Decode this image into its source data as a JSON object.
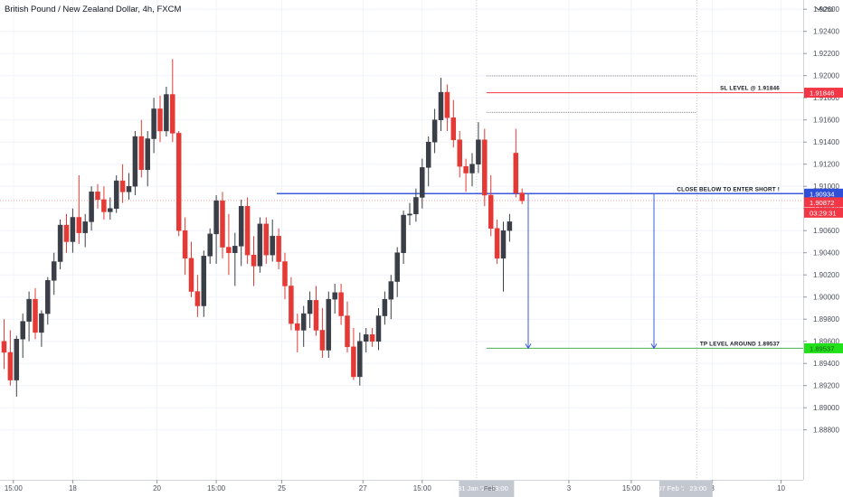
{
  "header": {
    "symbol_title": "British Pound / New Zealand Dollar, 4h, FXCM"
  },
  "colors": {
    "up": "#3a3e46",
    "down": "#e53935",
    "wick_up": "#3a3e46",
    "wick_down": "#e53935",
    "grid": "#f0f3fa",
    "axis_text": "#4a4f5a",
    "sl_line": "#f23645",
    "tp_line": "#4caf50",
    "entry_line": "#3b5bdb",
    "current_line": "#f7a29c",
    "badge_current": "#f23645",
    "badge_countdown": "#f23645",
    "badge_sl": "#f23645",
    "badge_tp": "#22e01a",
    "badge_entry": "#2f4fd9",
    "dotted": "#888888"
  },
  "chart_data": {
    "type": "candlestick",
    "title": "British Pound / New Zealand Dollar, 4h, FXCM",
    "currency_label": "NZD",
    "ylim": [
      1.8865,
      1.9285
    ],
    "y_ticks": [
      "1.92600",
      "1.92400",
      "1.92200",
      "1.92000",
      "1.91800",
      "1.91600",
      "1.91400",
      "1.91200",
      "1.91000",
      "1.90800",
      "1.90600",
      "1.90400",
      "1.90200",
      "1.90000",
      "1.89800",
      "1.89600",
      "1.89400",
      "1.89200",
      "1.89000",
      "1.88800"
    ],
    "y_tick_values": [
      1.926,
      1.924,
      1.922,
      1.92,
      1.918,
      1.916,
      1.914,
      1.912,
      1.91,
      1.908,
      1.906,
      1.904,
      1.902,
      1.9,
      1.898,
      1.896,
      1.894,
      1.892,
      1.89,
      1.888
    ],
    "x_ticks": [
      {
        "label": "15:00",
        "bar": 1.5
      },
      {
        "label": "18",
        "bar": 11
      },
      {
        "label": "20",
        "bar": 24.5
      },
      {
        "label": "15:00",
        "bar": 34
      },
      {
        "label": "25",
        "bar": 44.5
      },
      {
        "label": "27",
        "bar": 57.5
      },
      {
        "label": "15:00",
        "bar": 67
      },
      {
        "label": "3",
        "bar": 90.5
      },
      {
        "label": "15:00",
        "bar": 100.5
      },
      {
        "label": "8",
        "bar": 113.5
      },
      {
        "label": "10",
        "bar": 124.5
      }
    ],
    "x_badges": [
      {
        "label": "31 Jan '21",
        "bar": 75.2
      },
      {
        "label": "23:00",
        "bar": 79.4
      },
      {
        "label": "07 Feb '21",
        "bar": 107.3
      },
      {
        "label": "23:00",
        "bar": 111.2
      }
    ],
    "x_badge_overlay_text": "Feb",
    "candles": [
      [
        1.896,
        1.898,
        1.8935,
        1.895
      ],
      [
        1.895,
        1.897,
        1.892,
        1.8925
      ],
      [
        1.8925,
        1.8965,
        1.891,
        1.8962
      ],
      [
        1.8962,
        1.8985,
        1.8945,
        1.8978
      ],
      [
        1.8978,
        1.9005,
        1.896,
        1.8998
      ],
      [
        1.8998,
        1.9008,
        1.8962,
        1.8968
      ],
      [
        1.8968,
        1.8988,
        1.8955,
        1.8985
      ],
      [
        1.8985,
        1.9018,
        1.8975,
        1.9015
      ],
      [
        1.9015,
        1.904,
        1.9002,
        1.9032
      ],
      [
        1.9032,
        1.907,
        1.9025,
        1.9065
      ],
      [
        1.9065,
        1.9075,
        1.904,
        1.905
      ],
      [
        1.905,
        1.908,
        1.904,
        1.9072
      ],
      [
        1.9072,
        1.911,
        1.9048,
        1.9058
      ],
      [
        1.9058,
        1.9075,
        1.9045,
        1.9068
      ],
      [
        1.9068,
        1.91,
        1.906,
        1.9095
      ],
      [
        1.9095,
        1.9102,
        1.908,
        1.9088
      ],
      [
        1.9088,
        1.91,
        1.907,
        1.9077
      ],
      [
        1.9077,
        1.909,
        1.907,
        1.908
      ],
      [
        1.908,
        1.911,
        1.9076,
        1.9105
      ],
      [
        1.9105,
        1.912,
        1.9085,
        1.9095
      ],
      [
        1.9095,
        1.9112,
        1.9088,
        1.91
      ],
      [
        1.91,
        1.915,
        1.9092,
        1.9145
      ],
      [
        1.9145,
        1.916,
        1.9108,
        1.9115
      ],
      [
        1.9115,
        1.915,
        1.91,
        1.9143
      ],
      [
        1.9143,
        1.918,
        1.913,
        1.917
      ],
      [
        1.917,
        1.9182,
        1.914,
        1.915
      ],
      [
        1.915,
        1.919,
        1.9145,
        1.9183
      ],
      [
        1.9183,
        1.9215,
        1.914,
        1.9148
      ],
      [
        1.9148,
        1.915,
        1.9055,
        1.906
      ],
      [
        1.906,
        1.9072,
        1.902,
        1.9035
      ],
      [
        1.9035,
        1.905,
        1.9,
        1.9005
      ],
      [
        1.9005,
        1.902,
        1.8982,
        1.8992
      ],
      [
        1.8992,
        1.9042,
        1.8982,
        1.9037
      ],
      [
        1.9037,
        1.9062,
        1.903,
        1.9057
      ],
      [
        1.9057,
        1.9092,
        1.903,
        1.9087
      ],
      [
        1.9087,
        1.9095,
        1.9035,
        1.9045
      ],
      [
        1.9045,
        1.9075,
        1.902,
        1.904
      ],
      [
        1.904,
        1.9058,
        1.901,
        1.9046
      ],
      [
        1.9046,
        1.9088,
        1.9028,
        1.9082
      ],
      [
        1.9082,
        1.909,
        1.903,
        1.9038
      ],
      [
        1.9038,
        1.9055,
        1.901,
        1.9028
      ],
      [
        1.9028,
        1.9072,
        1.9022,
        1.9066
      ],
      [
        1.9066,
        1.9072,
        1.903,
        1.9038
      ],
      [
        1.9038,
        1.907,
        1.9032,
        1.9055
      ],
      [
        1.9055,
        1.9062,
        1.9025,
        1.9032
      ],
      [
        1.9032,
        1.904,
        1.8998,
        1.901
      ],
      [
        1.901,
        1.9018,
        1.897,
        1.8976
      ],
      [
        1.8976,
        1.8985,
        1.895,
        1.897
      ],
      [
        1.897,
        1.8992,
        1.8955,
        1.8985
      ],
      [
        1.8985,
        1.9005,
        1.8972,
        1.8997
      ],
      [
        1.8997,
        1.901,
        1.8965,
        1.897
      ],
      [
        1.897,
        1.899,
        1.8945,
        1.8952
      ],
      [
        1.8952,
        1.9005,
        1.8945,
        1.8998
      ],
      [
        1.8998,
        1.9012,
        1.8985,
        1.9004
      ],
      [
        1.9004,
        1.9012,
        1.8975,
        1.8983
      ],
      [
        1.8983,
        1.8996,
        1.895,
        1.8955
      ],
      [
        1.8955,
        1.8972,
        1.8925,
        1.8928
      ],
      [
        1.8928,
        1.8968,
        1.892,
        1.896
      ],
      [
        1.896,
        1.8972,
        1.895,
        1.8966
      ],
      [
        1.8966,
        1.8972,
        1.8955,
        1.896
      ],
      [
        1.896,
        1.899,
        1.8952,
        1.8983
      ],
      [
        1.8983,
        1.9005,
        1.8975,
        1.8998
      ],
      [
        1.8998,
        1.902,
        1.898,
        1.9014
      ],
      [
        1.9014,
        1.9045,
        1.9,
        1.904
      ],
      [
        1.904,
        1.9078,
        1.903,
        1.9074
      ],
      [
        1.9074,
        1.9085,
        1.9065,
        1.9075
      ],
      [
        1.9075,
        1.9098,
        1.9068,
        1.909
      ],
      [
        1.909,
        1.9125,
        1.908,
        1.9117
      ],
      [
        1.9117,
        1.9145,
        1.91,
        1.914
      ],
      [
        1.914,
        1.917,
        1.913,
        1.916
      ],
      [
        1.916,
        1.9198,
        1.915,
        1.9185
      ],
      [
        1.9185,
        1.9192,
        1.915,
        1.9162
      ],
      [
        1.9162,
        1.9178,
        1.9135,
        1.9142
      ],
      [
        1.9142,
        1.915,
        1.9108,
        1.9118
      ],
      [
        1.9118,
        1.9125,
        1.9095,
        1.9112
      ],
      [
        1.9112,
        1.913,
        1.91,
        1.912
      ],
      [
        1.912,
        1.9158,
        1.9112,
        1.9142
      ],
      [
        1.9142,
        1.9152,
        1.9082,
        1.9092
      ],
      [
        1.9092,
        1.911,
        1.9055,
        1.9062
      ],
      [
        1.9062,
        1.907,
        1.903,
        1.9035
      ],
      [
        1.9035,
        1.9068,
        1.9005,
        1.906
      ],
      [
        1.906,
        1.9075,
        1.905,
        1.9068
      ],
      [
        1.913,
        1.9152,
        1.909,
        1.9094
      ],
      [
        1.9094,
        1.9098,
        1.9084,
        1.9087
      ]
    ],
    "levels": {
      "sl": {
        "price": 1.91846,
        "label": "SL LEVEL @ 1.91846",
        "badge": "1.91846"
      },
      "entry": {
        "price": 1.90934,
        "label": "CLOSE BELOW TO ENTER SHORT !",
        "badge": "1.90934"
      },
      "current": {
        "price": 1.90872,
        "badge": "1.90872",
        "countdown": "03:29:31"
      },
      "tp": {
        "price": 1.89537,
        "label": "TP LEVEL AROUND 1.89537",
        "badge": "1.89537"
      },
      "dotted_upper": 1.91998,
      "dotted_lower": 1.91668
    }
  }
}
